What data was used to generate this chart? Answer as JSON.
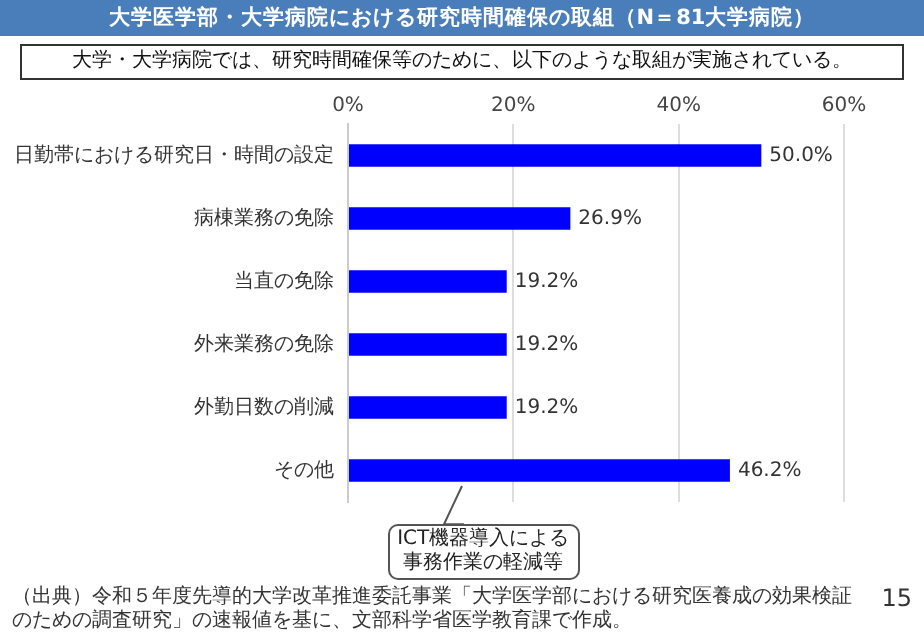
{
  "chart_data": {
    "type": "bar",
    "orientation": "horizontal",
    "title": "大学医学部・大学病院における研究時間確保の取組（N＝81大学病院）",
    "subtitle": "大学・大学病院では、研究時間確保等のために、以下のような取組が実施されている。",
    "categories": [
      "日勤帯における研究日・時間の設定",
      "病棟業務の免除",
      "当直の免除",
      "外来業務の免除",
      "外勤日数の削減",
      "その他"
    ],
    "values": [
      50.0,
      26.9,
      19.2,
      19.2,
      19.2,
      46.2
    ],
    "color": "#0000ff",
    "value_labels": [
      "50.0%",
      "26.9%",
      "19.2%",
      "19.2%",
      "19.2%",
      "46.2%"
    ],
    "xlim": [
      0,
      60
    ],
    "xticks": [
      {
        "value": 0,
        "label": "0%"
      },
      {
        "value": 20,
        "label": "20%"
      },
      {
        "value": 40,
        "label": "40%"
      },
      {
        "value": 60,
        "label": "60%"
      }
    ],
    "grid": "x",
    "legend": false,
    "annotations": [
      "ICT機器導入による事務作業の軽減等",
      "（出典）令和５年度先導的大学改革推進委託事業「大学医学部における研究医養成の効果検証のための調査研究」の速報値を基に、文部科学省医学教育課で作成。",
      "15"
    ]
  }
}
